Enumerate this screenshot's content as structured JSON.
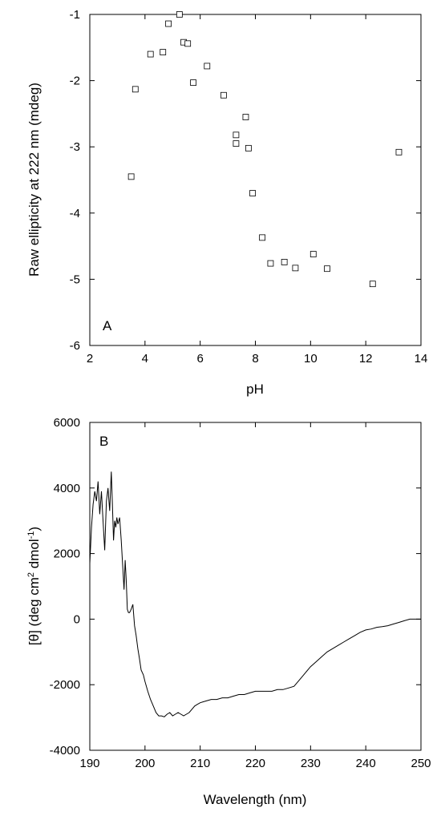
{
  "chart_data": [
    {
      "type": "scatter",
      "panel_label": "A",
      "xlabel": "pH",
      "ylabel": "Raw ellipticity at 222 nm (mdeg)",
      "xlim": [
        2,
        14
      ],
      "ylim": [
        -6,
        -1
      ],
      "xticks": [
        "2",
        "4",
        "6",
        "8",
        "10",
        "12",
        "14"
      ],
      "yticks": [
        "-1",
        "-2",
        "-3",
        "-4",
        "-5",
        "-6"
      ],
      "grid": false,
      "marker": "open-square",
      "points": [
        {
          "x": 3.5,
          "y": -3.45
        },
        {
          "x": 3.65,
          "y": -2.13
        },
        {
          "x": 4.2,
          "y": -1.6
        },
        {
          "x": 4.65,
          "y": -1.57
        },
        {
          "x": 4.85,
          "y": -1.14
        },
        {
          "x": 5.25,
          "y": -1.0
        },
        {
          "x": 5.4,
          "y": -1.42
        },
        {
          "x": 5.55,
          "y": -1.44
        },
        {
          "x": 5.75,
          "y": -2.03
        },
        {
          "x": 6.25,
          "y": -1.78
        },
        {
          "x": 6.85,
          "y": -2.22
        },
        {
          "x": 7.3,
          "y": -2.82
        },
        {
          "x": 7.3,
          "y": -2.95
        },
        {
          "x": 7.65,
          "y": -2.55
        },
        {
          "x": 7.75,
          "y": -3.02
        },
        {
          "x": 7.9,
          "y": -3.7
        },
        {
          "x": 8.25,
          "y": -4.37
        },
        {
          "x": 8.55,
          "y": -4.76
        },
        {
          "x": 9.05,
          "y": -4.74
        },
        {
          "x": 9.45,
          "y": -4.83
        },
        {
          "x": 10.1,
          "y": -4.62
        },
        {
          "x": 10.6,
          "y": -4.84
        },
        {
          "x": 12.25,
          "y": -5.07
        },
        {
          "x": 13.2,
          "y": -3.08
        }
      ]
    },
    {
      "type": "line",
      "panel_label": "B",
      "xlabel": "Wavelength (nm)",
      "ylabel": {
        "pre": "[θ] (deg cm",
        "sup1": "2",
        "mid": " dmol",
        "sup2": "-1",
        "post": ")"
      },
      "xlim": [
        190,
        250
      ],
      "ylim": [
        -4000,
        6000
      ],
      "xticks": [
        "190",
        "200",
        "210",
        "220",
        "230",
        "240",
        "250"
      ],
      "yticks": [
        "6000",
        "4000",
        "2000",
        "0",
        "-2000",
        "-4000"
      ],
      "grid": false,
      "series": [
        {
          "x": [
            190,
            190.3,
            190.6,
            190.9,
            191.2,
            191.5,
            191.8,
            192.1,
            192.4,
            192.7,
            193.0,
            193.3,
            193.6,
            193.9,
            194.1,
            194.3,
            194.5,
            194.7,
            194.9,
            195.1,
            195.4,
            195.7,
            196.0,
            196.2,
            196.4,
            196.6,
            196.8,
            197.0,
            197.2,
            197.5,
            197.8,
            198.1,
            198.4,
            198.7,
            199.0,
            199.3,
            199.7,
            200.0,
            200.5,
            201.0,
            201.5,
            202.0,
            202.5,
            203.0,
            203.5,
            204.0,
            204.5,
            205.0,
            205.5,
            206.0,
            206.5,
            207.0,
            207.5,
            208.0,
            208.5,
            209.0,
            209.5,
            210.0,
            211.0,
            212.0,
            213.0,
            214.0,
            215.0,
            216.0,
            217.0,
            218.0,
            219.0,
            220.0,
            221.0,
            222.0,
            223.0,
            224.0,
            225.0,
            226.0,
            227.0,
            228.0,
            229.0,
            230.0,
            231.0,
            232.0,
            233.0,
            234.0,
            235.0,
            236.0,
            237.0,
            238.0,
            239.0,
            240.0,
            241.0,
            242.0,
            243.0,
            244.0,
            245.0,
            246.0,
            247.0,
            248.0,
            249.0,
            250.0
          ],
          "y": [
            1700,
            2800,
            3500,
            3900,
            3600,
            4200,
            3200,
            3900,
            3000,
            2100,
            3600,
            4000,
            3300,
            4500,
            3500,
            2400,
            3000,
            2800,
            3100,
            2900,
            3100,
            2400,
            1500,
            900,
            1800,
            1200,
            300,
            200,
            200,
            300,
            450,
            -200,
            -500,
            -900,
            -1200,
            -1550,
            -1700,
            -1900,
            -2200,
            -2450,
            -2650,
            -2850,
            -2950,
            -2950,
            -2980,
            -2900,
            -2850,
            -2950,
            -2900,
            -2850,
            -2900,
            -2950,
            -2900,
            -2850,
            -2750,
            -2650,
            -2600,
            -2550,
            -2500,
            -2450,
            -2450,
            -2400,
            -2400,
            -2350,
            -2300,
            -2300,
            -2250,
            -2200,
            -2200,
            -2200,
            -2200,
            -2150,
            -2150,
            -2100,
            -2050,
            -1850,
            -1650,
            -1450,
            -1300,
            -1150,
            -1000,
            -900,
            -800,
            -700,
            -600,
            -500,
            -400,
            -330,
            -300,
            -250,
            -230,
            -200,
            -150,
            -100,
            -50,
            0,
            0,
            0
          ]
        }
      ]
    }
  ]
}
